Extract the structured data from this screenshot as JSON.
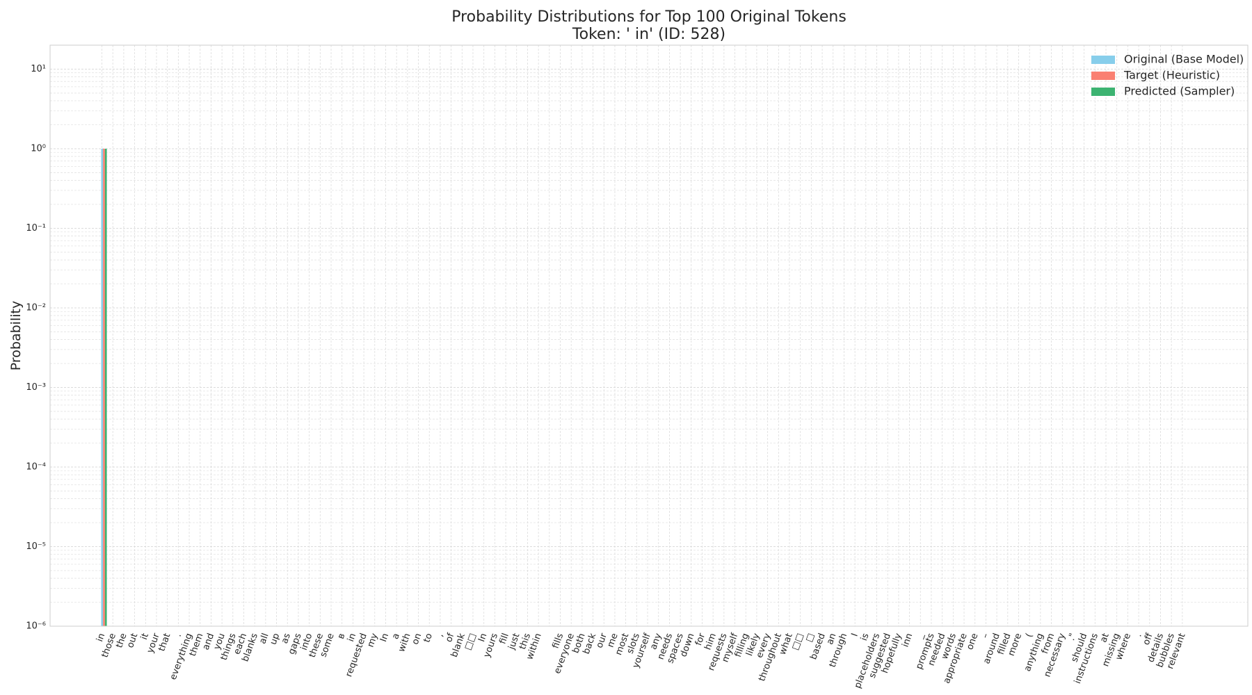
{
  "chart_data": {
    "type": "bar",
    "title": "Probability Distributions for Top 100 Original Tokens",
    "subtitle": "Token: ' in' (ID: 528)",
    "y_label": "Probability",
    "log_y": true,
    "grid": true,
    "minor_grid": true,
    "legend": "upper right",
    "categories": [
      "in",
      "those",
      "the",
      "out",
      "it",
      "your",
      "that",
      ".",
      "everything",
      "them",
      "and",
      "you",
      "things",
      "each",
      "blanks",
      "all",
      "up",
      "as",
      "gaps",
      "into",
      "these",
      "some",
      "в",
      "in",
      "requested",
      "my",
      "In",
      "a",
      "with",
      "on",
      "to",
      ",",
      "of",
      "blank",
      "□□",
      "In",
      "yours",
      "fill",
      "just",
      "this",
      "within",
      null,
      "fills",
      "everyone",
      "both",
      "back",
      "our",
      "me",
      "most",
      "slots",
      "yourself",
      "any",
      "needs",
      "spaces",
      "down",
      "for",
      "him",
      "requests",
      "myself",
      "filling",
      "likely",
      "every",
      "throughout",
      "what",
      "□□",
      "□",
      "based",
      "an",
      "through",
      "I",
      "is",
      "placeholders",
      "suggested",
      "hopefully",
      "inn",
      "_",
      "prompts",
      "needed",
      "words",
      "appropriate",
      "one",
      "–",
      "around",
      "filled",
      "more",
      "(",
      "anything",
      "from",
      "necessary",
      ".\"",
      "should",
      "instructions",
      "at",
      "missing",
      "where",
      ".",
      "off",
      "details",
      "bubbles",
      "relevant"
    ],
    "series": [
      {
        "name": "Original (Base Model)",
        "color": "#87ceeb",
        "values": [
          1,
          0,
          0,
          0,
          0,
          0,
          0,
          0,
          0,
          0,
          0,
          0,
          0,
          0,
          0,
          0,
          0,
          0,
          0,
          0,
          0,
          0,
          0,
          0,
          0,
          0,
          0,
          0,
          0,
          0,
          0,
          0,
          0,
          0,
          0,
          0,
          0,
          0,
          0,
          0,
          0,
          0,
          0,
          0,
          0,
          0,
          0,
          0,
          0,
          0,
          0,
          0,
          0,
          0,
          0,
          0,
          0,
          0,
          0,
          0,
          0,
          0,
          0,
          0,
          0,
          0,
          0,
          0,
          0,
          0,
          0,
          0,
          0,
          0,
          0,
          0,
          0,
          0,
          0,
          0,
          0,
          0,
          0,
          0,
          0,
          0,
          0,
          0,
          0,
          0,
          0,
          0,
          0,
          0,
          0,
          0,
          0,
          0,
          0,
          0
        ]
      },
      {
        "name": "Target (Heuristic)",
        "color": "#fa8072",
        "values": [
          1,
          0,
          0,
          0,
          0,
          0,
          0,
          0,
          0,
          0,
          0,
          0,
          0,
          0,
          0,
          0,
          0,
          0,
          0,
          0,
          0,
          0,
          0,
          0,
          0,
          0,
          0,
          0,
          0,
          0,
          0,
          0,
          0,
          0,
          0,
          0,
          0,
          0,
          0,
          0,
          0,
          0,
          0,
          0,
          0,
          0,
          0,
          0,
          0,
          0,
          0,
          0,
          0,
          0,
          0,
          0,
          0,
          0,
          0,
          0,
          0,
          0,
          0,
          0,
          0,
          0,
          0,
          0,
          0,
          0,
          0,
          0,
          0,
          0,
          0,
          0,
          0,
          0,
          0,
          0,
          0,
          0,
          0,
          0,
          0,
          0,
          0,
          0,
          0,
          0,
          0,
          0,
          0,
          0,
          0,
          0,
          0,
          0,
          0,
          0
        ]
      },
      {
        "name": "Predicted (Sampler)",
        "color": "#3cb371",
        "values": [
          1,
          0,
          0,
          0,
          0,
          0,
          0,
          0,
          0,
          0,
          0,
          0,
          0,
          0,
          0,
          0,
          0,
          0,
          0,
          0,
          0,
          0,
          0,
          0,
          0,
          0,
          0,
          0,
          0,
          0,
          0,
          0,
          0,
          0,
          0,
          0,
          0,
          0,
          0,
          0,
          0,
          0,
          0,
          0,
          0,
          0,
          0,
          0,
          0,
          0,
          0,
          0,
          0,
          0,
          0,
          0,
          0,
          0,
          0,
          0,
          0,
          0,
          0,
          0,
          0,
          0,
          0,
          0,
          0,
          0,
          0,
          0,
          0,
          0,
          0,
          0,
          0,
          0,
          0,
          0,
          0,
          0,
          0,
          0,
          0,
          0,
          0,
          0,
          0,
          0,
          0,
          0,
          0,
          0,
          0,
          0,
          0,
          0,
          0,
          0
        ]
      }
    ],
    "ylim": [
      1e-06,
      20
    ],
    "yticks": [
      {
        "value": 1e-06,
        "label": "10⁻⁶"
      },
      {
        "value": 1e-05,
        "label": "10⁻⁵"
      },
      {
        "value": 0.0001,
        "label": "10⁻⁴"
      },
      {
        "value": 0.001,
        "label": "10⁻³"
      },
      {
        "value": 0.01,
        "label": "10⁻²"
      },
      {
        "value": 0.1,
        "label": "10⁻¹"
      },
      {
        "value": 1,
        "label": "10⁰"
      },
      {
        "value": 10,
        "label": "10¹"
      }
    ]
  }
}
